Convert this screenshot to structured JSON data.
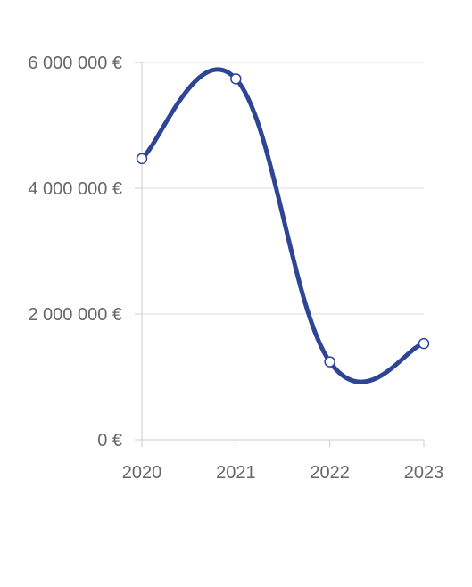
{
  "chart_data": {
    "type": "line",
    "x": [
      "2020",
      "2021",
      "2022",
      "2023"
    ],
    "series": [
      {
        "values": [
          4470000,
          5740000,
          1240000,
          1530000
        ],
        "color": "#2e4596"
      }
    ],
    "ylim": [
      0,
      6000000
    ],
    "yticks": [
      {
        "value": 0,
        "label": "0 €"
      },
      {
        "value": 2000000,
        "label": "2 000 000 €"
      },
      {
        "value": 4000000,
        "label": "4 000 000 €"
      },
      {
        "value": 6000000,
        "label": "6 000 000 €"
      }
    ],
    "grid": true,
    "curve": "smooth",
    "marker": "hollow-circle",
    "legend": "none"
  }
}
